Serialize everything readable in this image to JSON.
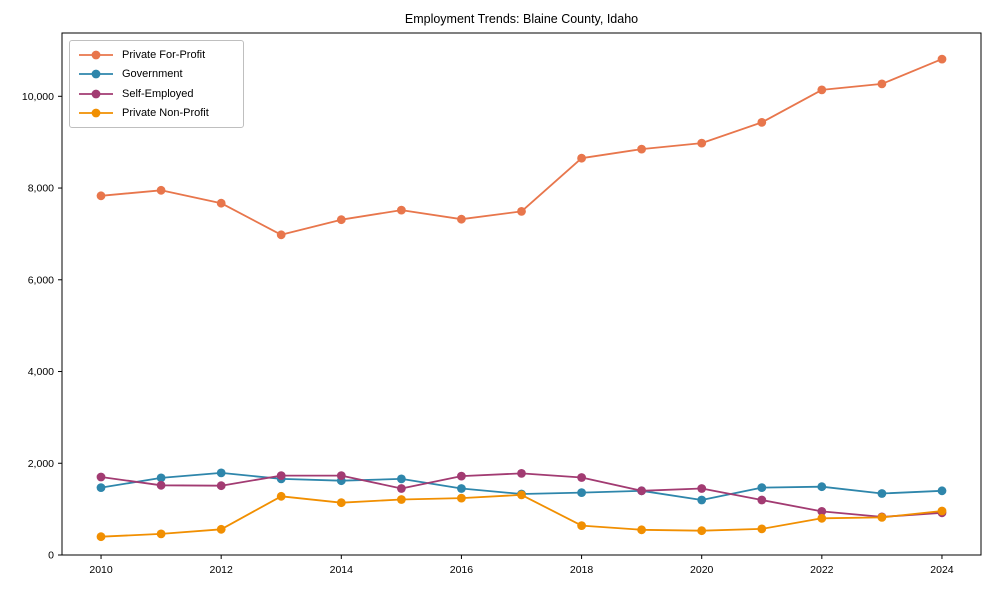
{
  "title": "Employment Trends: Blaine County, Idaho",
  "chart_data": {
    "type": "line",
    "title": "Employment Trends: Blaine County, Idaho",
    "xlabel": "",
    "ylabel": "",
    "x": [
      2010,
      2011,
      2012,
      2013,
      2014,
      2015,
      2016,
      2017,
      2018,
      2019,
      2020,
      2021,
      2022,
      2023,
      2024
    ],
    "x_tick_labels": [
      "2010",
      "2012",
      "2014",
      "2016",
      "2018",
      "2020",
      "2022",
      "2024"
    ],
    "x_ticks": [
      2010,
      2012,
      2014,
      2016,
      2018,
      2020,
      2022,
      2024
    ],
    "y_ticks": [
      0,
      2000,
      4000,
      6000,
      8000,
      10000
    ],
    "y_tick_labels": [
      "0",
      "2,000",
      "4,000",
      "6,000",
      "8,000",
      "10,000"
    ],
    "xlim": [
      2009.35,
      2024.65
    ],
    "ylim": [
      0,
      11380
    ],
    "grid": false,
    "legend_position": "upper-left",
    "series": [
      {
        "name": "Private For-Profit",
        "color": "#e8764c",
        "values": [
          7830,
          7950,
          7670,
          6980,
          7310,
          7520,
          7320,
          7490,
          8650,
          8850,
          8980,
          9430,
          10140,
          10270,
          10810
        ]
      },
      {
        "name": "Government",
        "color": "#2e86ab",
        "values": [
          1470,
          1680,
          1790,
          1660,
          1620,
          1660,
          1450,
          1330,
          1360,
          1400,
          1200,
          1470,
          1490,
          1340,
          1400
        ]
      },
      {
        "name": "Self-Employed",
        "color": "#a23b72",
        "values": [
          1700,
          1520,
          1510,
          1730,
          1730,
          1450,
          1720,
          1780,
          1690,
          1400,
          1450,
          1200,
          950,
          830,
          920
        ]
      },
      {
        "name": "Private Non-Profit",
        "color": "#f18f01",
        "values": [
          400,
          460,
          560,
          1280,
          1140,
          1210,
          1240,
          1310,
          640,
          550,
          530,
          570,
          800,
          820,
          960
        ]
      }
    ]
  }
}
